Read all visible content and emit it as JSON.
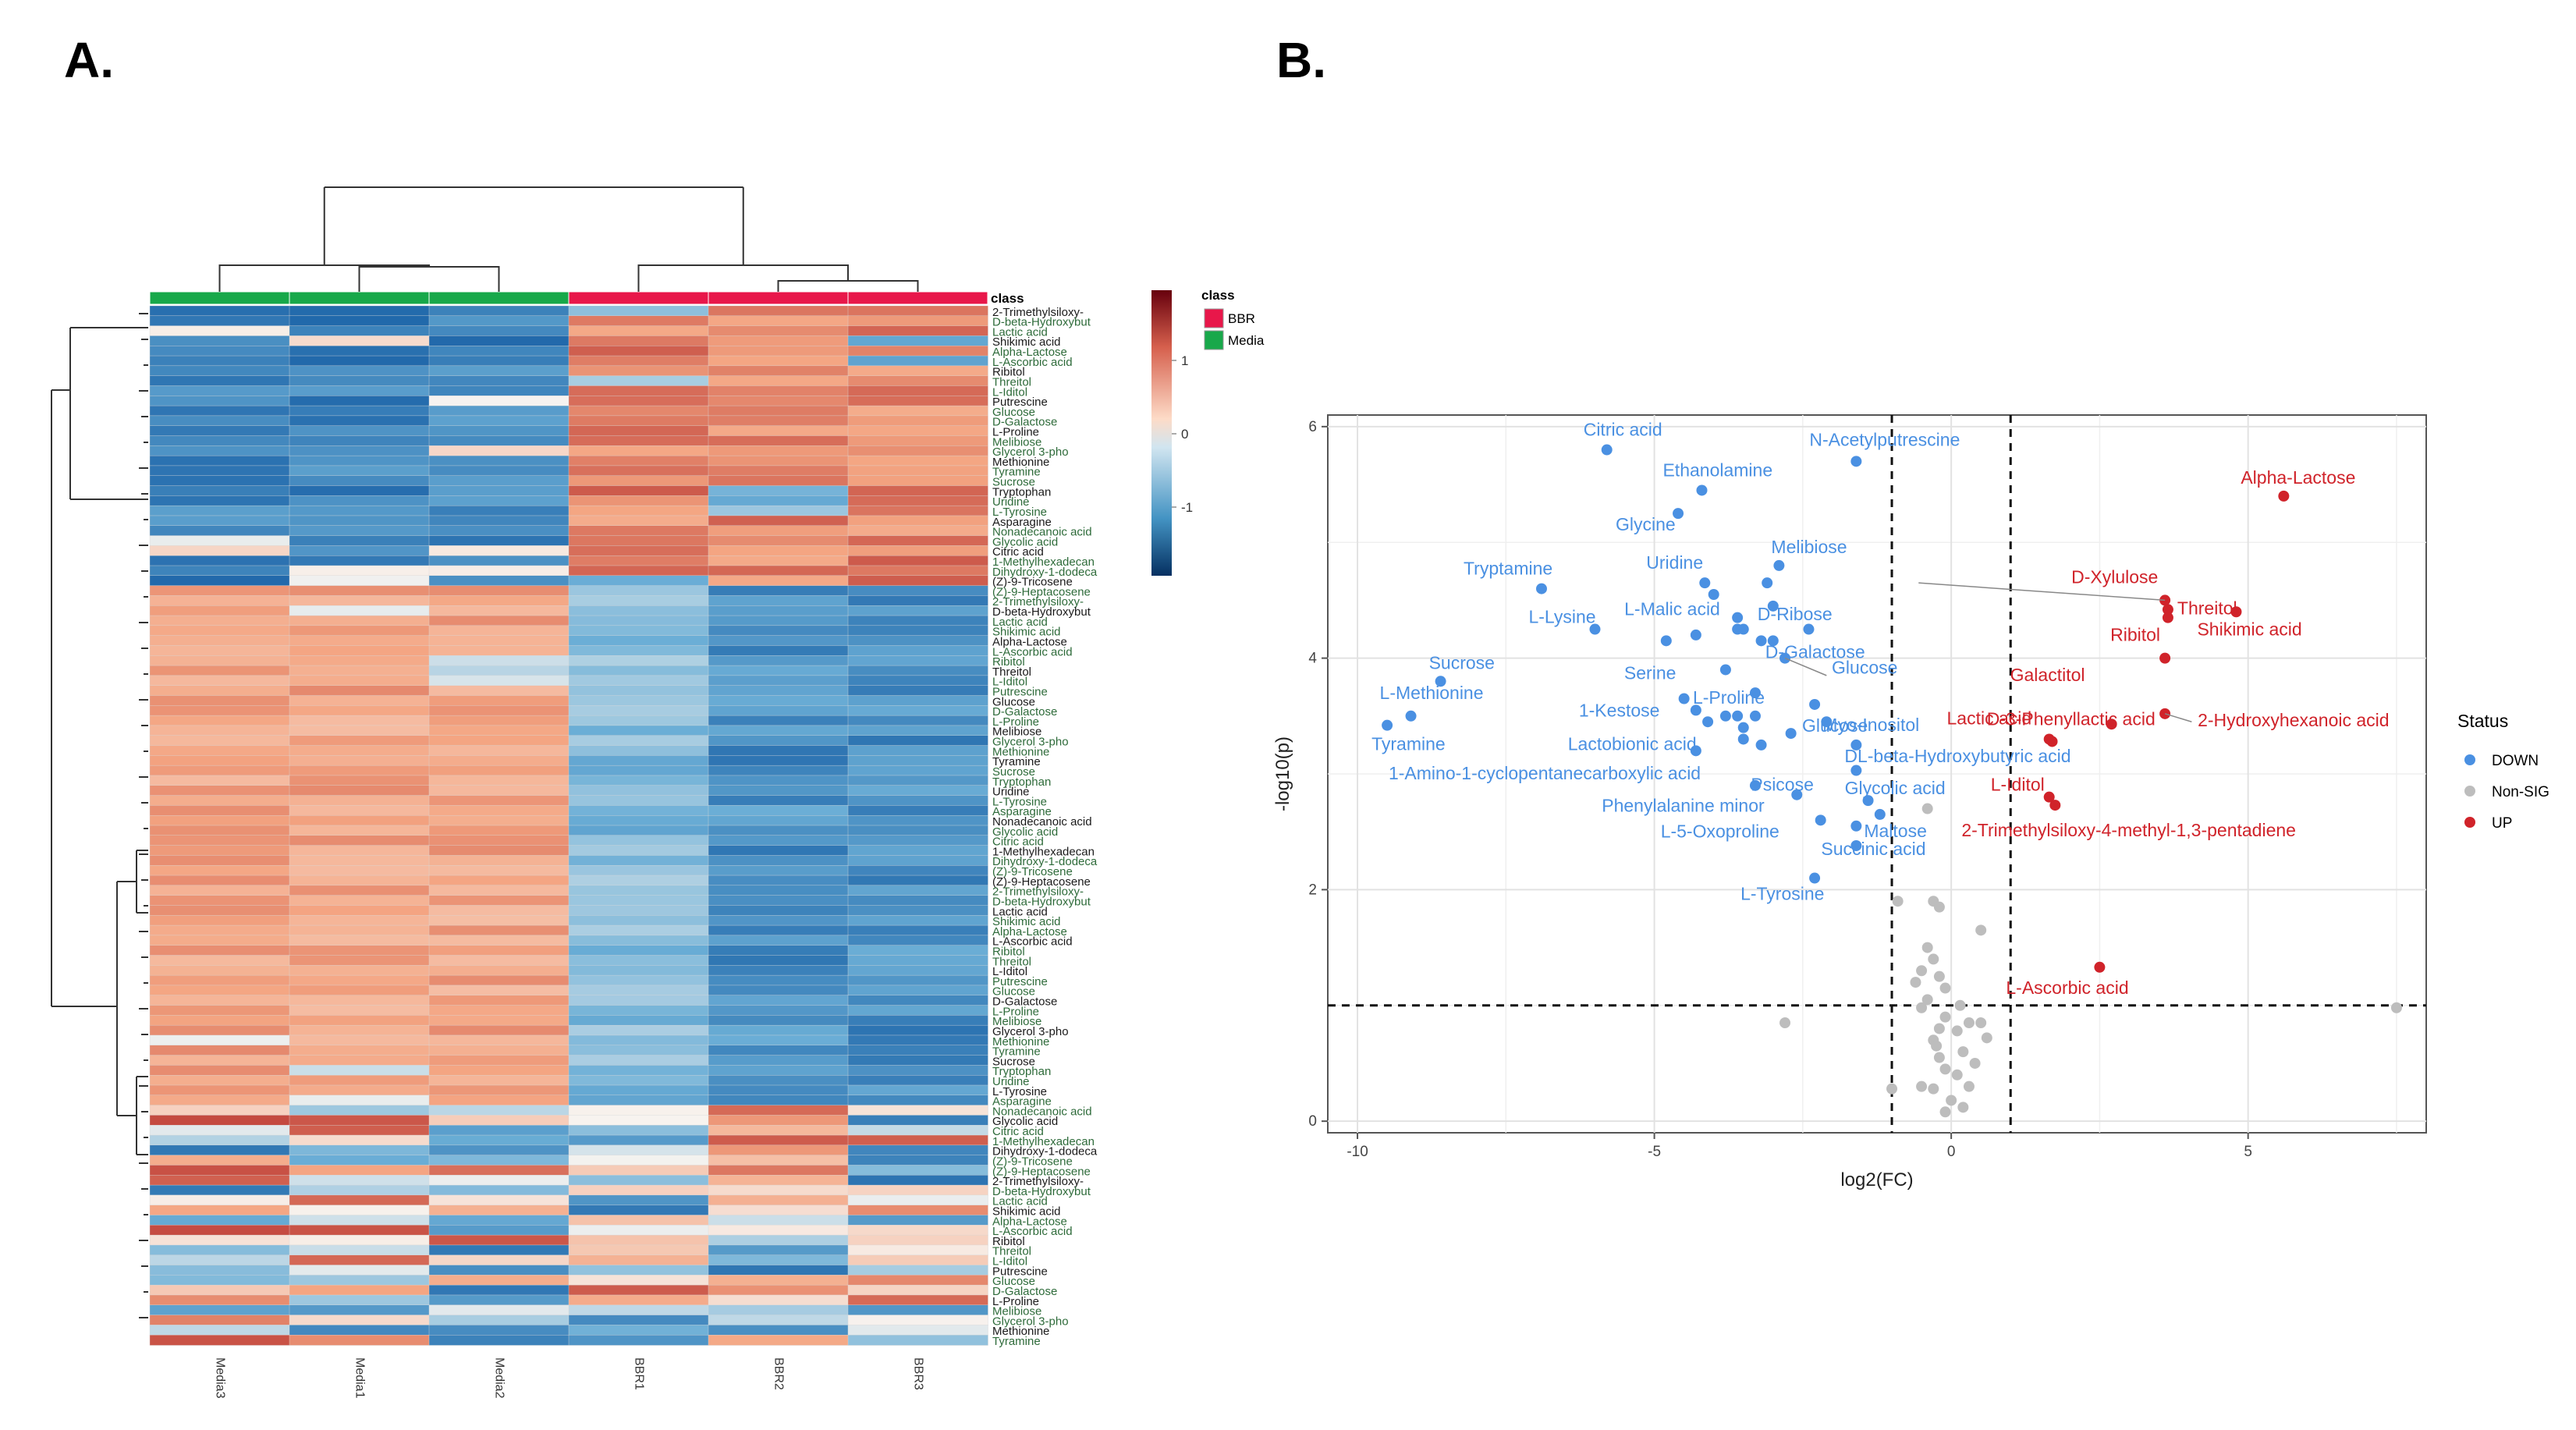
{
  "panels": {
    "a_label": "A.",
    "b_label": "B."
  },
  "chart_data": [
    {
      "type": "heatmap",
      "samples": [
        "Media3",
        "Media1",
        "Media2",
        "BBR1",
        "BBR2",
        "BBR3"
      ],
      "sample_class": [
        "Media",
        "Media",
        "Media",
        "BBR",
        "BBR",
        "BBR"
      ],
      "class_header": "class",
      "legend_class_title": "class",
      "legend_classes": [
        {
          "name": "BBR",
          "color": "#e8174a"
        },
        {
          "name": "Media",
          "color": "#18a84a"
        }
      ],
      "color_scale": {
        "ticks": [
          1,
          0,
          -1
        ],
        "low": "#08519c",
        "mid": "#f7f4f0",
        "high": "#a50f15"
      },
      "row_labels_visible": [
        "2-Trimethylsiloxy-",
        "D-beta-Hydroxybut",
        "Lactic acid",
        "Shikimic acid",
        "Alpha-Lactose",
        "L-Ascorbic acid",
        "Ribitol",
        "Threitol",
        "L-Iditol",
        "Putrescine",
        "Glucose",
        "D-Galactose",
        "L-Proline",
        "Melibiose",
        "Glycerol 3-pho",
        "Methionine",
        "Tyramine",
        "Sucrose",
        "Tryptophan",
        "Uridine",
        "L-Tyrosine",
        "Asparagine",
        "Nonadecanoic acid",
        "Glycolic acid",
        "Citric acid",
        "1-Methylhexadecan",
        "Dihydroxy-1-dodeca",
        "(Z)-9-Tricosene",
        "(Z)-9-Heptacosene"
      ],
      "row_count": 104
    },
    {
      "type": "scatter",
      "title": "",
      "xlabel": "log2(FC)",
      "ylabel": "-log10(p)",
      "xlim": [
        -10.5,
        8
      ],
      "ylim": [
        -0.1,
        6.1
      ],
      "x_ticks": [
        "-10",
        "-5",
        "0",
        "5"
      ],
      "y_ticks": [
        "0",
        "2",
        "4",
        "6"
      ],
      "fc_threshold": [
        -1,
        1
      ],
      "p_threshold": 1,
      "legend_title": "Status",
      "legend": [
        {
          "name": "DOWN",
          "color": "#4a90e2"
        },
        {
          "name": "Non-SIG",
          "color": "#bdbdbd"
        },
        {
          "name": "UP",
          "color": "#d0232a"
        }
      ],
      "points": [
        {
          "x": -5.8,
          "y": 5.8,
          "s": "DOWN",
          "label": "Citric acid"
        },
        {
          "x": -1.6,
          "y": 5.7,
          "s": "DOWN",
          "label": "N-Acetylputrescine"
        },
        {
          "x": -4.2,
          "y": 5.45,
          "s": "DOWN",
          "label": "Ethanolamine"
        },
        {
          "x": -4.6,
          "y": 5.25,
          "s": "DOWN",
          "label": "Glycine"
        },
        {
          "x": -2.9,
          "y": 4.8,
          "s": "DOWN",
          "label": "Melibiose"
        },
        {
          "x": -6.9,
          "y": 4.6,
          "s": "DOWN",
          "label": "Tryptamine"
        },
        {
          "x": -4.15,
          "y": 4.65,
          "s": "DOWN",
          "label": "Uridine"
        },
        {
          "x": -3.1,
          "y": 4.65,
          "s": "DOWN",
          "label": ""
        },
        {
          "x": -4.0,
          "y": 4.55,
          "s": "DOWN",
          "label": ""
        },
        {
          "x": -3.0,
          "y": 4.45,
          "s": "DOWN",
          "label": "D-Ribose"
        },
        {
          "x": -3.6,
          "y": 4.35,
          "s": "DOWN",
          "label": ""
        },
        {
          "x": -6.0,
          "y": 4.25,
          "s": "DOWN",
          "label": "L-Lysine"
        },
        {
          "x": -3.6,
          "y": 4.25,
          "s": "DOWN",
          "label": "L-Malic acid"
        },
        {
          "x": -3.5,
          "y": 4.25,
          "s": "DOWN",
          "label": ""
        },
        {
          "x": -2.4,
          "y": 4.25,
          "s": "DOWN",
          "label": ""
        },
        {
          "x": -4.3,
          "y": 4.2,
          "s": "DOWN",
          "label": ""
        },
        {
          "x": -4.8,
          "y": 4.15,
          "s": "DOWN",
          "label": ""
        },
        {
          "x": -3.2,
          "y": 4.15,
          "s": "DOWN",
          "label": ""
        },
        {
          "x": -3.0,
          "y": 4.15,
          "s": "DOWN",
          "label": "D-Galactose"
        },
        {
          "x": -2.8,
          "y": 4.0,
          "s": "DOWN",
          "label": "Glucose"
        },
        {
          "x": -8.6,
          "y": 3.8,
          "s": "DOWN",
          "label": "Sucrose"
        },
        {
          "x": -3.8,
          "y": 3.9,
          "s": "DOWN",
          "label": "Serine"
        },
        {
          "x": -4.5,
          "y": 3.65,
          "s": "DOWN",
          "label": ""
        },
        {
          "x": -3.3,
          "y": 3.7,
          "s": "DOWN",
          "label": "L-Proline"
        },
        {
          "x": -2.3,
          "y": 3.6,
          "s": "DOWN",
          "label": ""
        },
        {
          "x": -4.3,
          "y": 3.55,
          "s": "DOWN",
          "label": "1-Kestose"
        },
        {
          "x": -3.8,
          "y": 3.5,
          "s": "DOWN",
          "label": ""
        },
        {
          "x": -3.6,
          "y": 3.5,
          "s": "DOWN",
          "label": ""
        },
        {
          "x": -3.3,
          "y": 3.5,
          "s": "DOWN",
          "label": "Glucose"
        },
        {
          "x": -2.1,
          "y": 3.45,
          "s": "DOWN",
          "label": "Myo-Inositol"
        },
        {
          "x": -9.1,
          "y": 3.5,
          "s": "DOWN",
          "label": "L-Methionine"
        },
        {
          "x": -9.5,
          "y": 3.42,
          "s": "DOWN",
          "label": "Tyramine"
        },
        {
          "x": -4.1,
          "y": 3.45,
          "s": "DOWN",
          "label": ""
        },
        {
          "x": -3.5,
          "y": 3.4,
          "s": "DOWN",
          "label": ""
        },
        {
          "x": -2.7,
          "y": 3.35,
          "s": "DOWN",
          "label": ""
        },
        {
          "x": -1.6,
          "y": 3.25,
          "s": "DOWN",
          "label": "DL-beta-Hydroxybutyric acid"
        },
        {
          "x": -3.5,
          "y": 3.3,
          "s": "DOWN",
          "label": "Lactobionic acid"
        },
        {
          "x": -3.2,
          "y": 3.25,
          "s": "DOWN",
          "label": ""
        },
        {
          "x": -4.3,
          "y": 3.2,
          "s": "DOWN",
          "label": ""
        },
        {
          "x": -1.6,
          "y": 3.03,
          "s": "DOWN",
          "label": "Psicose"
        },
        {
          "x": -3.3,
          "y": 2.9,
          "s": "DOWN",
          "label": "1-Amino-1-cyclopentanecarboxylic acid"
        },
        {
          "x": -2.6,
          "y": 2.82,
          "s": "DOWN",
          "label": "Phenylalanine minor"
        },
        {
          "x": -1.4,
          "y": 2.77,
          "s": "DOWN",
          "label": "Glycolic acid"
        },
        {
          "x": -1.2,
          "y": 2.65,
          "s": "DOWN",
          "label": ""
        },
        {
          "x": -2.2,
          "y": 2.6,
          "s": "DOWN",
          "label": "L-5-Oxoproline"
        },
        {
          "x": -1.6,
          "y": 2.55,
          "s": "DOWN",
          "label": "Maltose"
        },
        {
          "x": -1.6,
          "y": 2.38,
          "s": "DOWN",
          "label": "Succinic acid"
        },
        {
          "x": -2.3,
          "y": 2.1,
          "s": "DOWN",
          "label": "L-Tyrosine"
        },
        {
          "x": 5.6,
          "y": 5.4,
          "s": "UP",
          "label": "Alpha-Lactose"
        },
        {
          "x": 3.6,
          "y": 4.5,
          "s": "UP",
          "label": "D-Xylulose"
        },
        {
          "x": 3.65,
          "y": 4.42,
          "s": "UP",
          "label": ""
        },
        {
          "x": 4.8,
          "y": 4.4,
          "s": "UP",
          "label": "Shikimic acid"
        },
        {
          "x": 3.65,
          "y": 4.35,
          "s": "UP",
          "label": "Threitol"
        },
        {
          "x": 3.6,
          "y": 4.0,
          "s": "UP",
          "label": "Ribitol"
        },
        {
          "x": 2.7,
          "y": 3.43,
          "s": "UP",
          "label": "Galactitol"
        },
        {
          "x": 3.6,
          "y": 3.52,
          "s": "UP",
          "label": "2-Hydroxyhexanoic acid"
        },
        {
          "x": 1.65,
          "y": 3.3,
          "s": "UP",
          "label": "D-3-Phenyllactic acid"
        },
        {
          "x": 1.7,
          "y": 3.28,
          "s": "UP",
          "label": "Lactic acid"
        },
        {
          "x": 1.65,
          "y": 2.8,
          "s": "UP",
          "label": "L-Iditol"
        },
        {
          "x": 1.75,
          "y": 2.73,
          "s": "UP",
          "label": "2-Trimethylsiloxy-4-methyl-1,3-pentadiene"
        },
        {
          "x": 2.5,
          "y": 1.33,
          "s": "UP",
          "label": "L-Ascorbic acid"
        },
        {
          "x": -0.4,
          "y": 2.7,
          "s": "NS",
          "label": ""
        },
        {
          "x": -0.9,
          "y": 1.9,
          "s": "NS",
          "label": ""
        },
        {
          "x": -0.3,
          "y": 1.9,
          "s": "NS",
          "label": ""
        },
        {
          "x": -0.2,
          "y": 1.85,
          "s": "NS",
          "label": ""
        },
        {
          "x": 0.5,
          "y": 1.65,
          "s": "NS",
          "label": ""
        },
        {
          "x": -0.4,
          "y": 1.5,
          "s": "NS",
          "label": ""
        },
        {
          "x": -0.3,
          "y": 1.4,
          "s": "NS",
          "label": ""
        },
        {
          "x": -0.5,
          "y": 1.3,
          "s": "NS",
          "label": ""
        },
        {
          "x": -0.2,
          "y": 1.25,
          "s": "NS",
          "label": ""
        },
        {
          "x": -0.1,
          "y": 1.15,
          "s": "NS",
          "label": ""
        },
        {
          "x": -0.6,
          "y": 1.2,
          "s": "NS",
          "label": ""
        },
        {
          "x": -0.4,
          "y": 1.05,
          "s": "NS",
          "label": ""
        },
        {
          "x": -0.5,
          "y": 0.98,
          "s": "NS",
          "label": ""
        },
        {
          "x": -0.1,
          "y": 0.9,
          "s": "NS",
          "label": ""
        },
        {
          "x": 0.3,
          "y": 0.85,
          "s": "NS",
          "label": ""
        },
        {
          "x": 0.5,
          "y": 0.85,
          "s": "NS",
          "label": ""
        },
        {
          "x": -0.2,
          "y": 0.8,
          "s": "NS",
          "label": ""
        },
        {
          "x": 0.1,
          "y": 0.78,
          "s": "NS",
          "label": ""
        },
        {
          "x": 0.6,
          "y": 0.72,
          "s": "NS",
          "label": ""
        },
        {
          "x": -0.3,
          "y": 0.7,
          "s": "NS",
          "label": ""
        },
        {
          "x": 0.2,
          "y": 0.6,
          "s": "NS",
          "label": ""
        },
        {
          "x": -0.2,
          "y": 0.55,
          "s": "NS",
          "label": ""
        },
        {
          "x": 0.4,
          "y": 0.5,
          "s": "NS",
          "label": ""
        },
        {
          "x": -0.1,
          "y": 0.45,
          "s": "NS",
          "label": ""
        },
        {
          "x": 0.1,
          "y": 0.4,
          "s": "NS",
          "label": ""
        },
        {
          "x": 0.3,
          "y": 0.3,
          "s": "NS",
          "label": ""
        },
        {
          "x": -0.5,
          "y": 0.3,
          "s": "NS",
          "label": ""
        },
        {
          "x": -0.3,
          "y": 0.28,
          "s": "NS",
          "label": ""
        },
        {
          "x": 0.0,
          "y": 0.18,
          "s": "NS",
          "label": ""
        },
        {
          "x": 0.2,
          "y": 0.12,
          "s": "NS",
          "label": ""
        },
        {
          "x": -0.1,
          "y": 0.08,
          "s": "NS",
          "label": ""
        },
        {
          "x": -1.0,
          "y": 0.28,
          "s": "NS",
          "label": ""
        },
        {
          "x": -2.8,
          "y": 0.85,
          "s": "NS",
          "label": ""
        },
        {
          "x": 7.5,
          "y": 0.98,
          "s": "NS",
          "label": ""
        },
        {
          "x": 0.15,
          "y": 1.0,
          "s": "NS",
          "label": ""
        },
        {
          "x": -0.25,
          "y": 0.65,
          "s": "NS",
          "label": ""
        }
      ]
    }
  ]
}
